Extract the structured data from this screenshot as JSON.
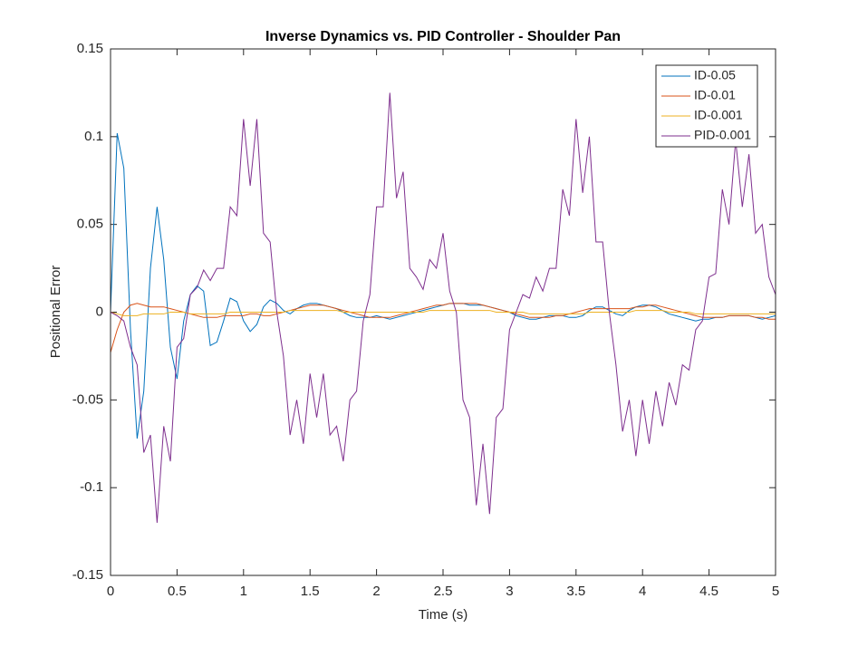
{
  "chart_data": {
    "type": "line",
    "title": "Inverse Dynamics vs. PID Controller - Shoulder Pan",
    "xlabel": "Time (s)",
    "ylabel": "Positional Error",
    "xlim": [
      0,
      5
    ],
    "ylim": [
      -0.15,
      0.15
    ],
    "xticks": [
      0,
      0.5,
      1,
      1.5,
      2,
      2.5,
      3,
      3.5,
      4,
      4.5,
      5
    ],
    "yticks": [
      -0.15,
      -0.1,
      -0.05,
      0,
      0.05,
      0.1,
      0.15
    ],
    "legend": "top-right",
    "grid": false,
    "x": [
      0,
      0.05,
      0.1,
      0.15,
      0.2,
      0.25,
      0.3,
      0.35,
      0.4,
      0.45,
      0.5,
      0.55,
      0.6,
      0.65,
      0.7,
      0.75,
      0.8,
      0.85,
      0.9,
      0.95,
      1,
      1.05,
      1.1,
      1.15,
      1.2,
      1.25,
      1.3,
      1.35,
      1.4,
      1.45,
      1.5,
      1.55,
      1.6,
      1.65,
      1.7,
      1.75,
      1.8,
      1.85,
      1.9,
      1.95,
      2,
      2.05,
      2.1,
      2.15,
      2.2,
      2.25,
      2.3,
      2.35,
      2.4,
      2.45,
      2.5,
      2.55,
      2.6,
      2.65,
      2.7,
      2.75,
      2.8,
      2.85,
      2.9,
      2.95,
      3,
      3.05,
      3.1,
      3.15,
      3.2,
      3.25,
      3.3,
      3.35,
      3.4,
      3.45,
      3.5,
      3.55,
      3.6,
      3.65,
      3.7,
      3.75,
      3.8,
      3.85,
      3.9,
      3.95,
      4,
      4.05,
      4.1,
      4.15,
      4.2,
      4.25,
      4.3,
      4.35,
      4.4,
      4.45,
      4.5,
      4.55,
      4.6,
      4.65,
      4.7,
      4.75,
      4.8,
      4.85,
      4.9,
      4.95,
      5
    ],
    "series": [
      {
        "name": "ID-0.05",
        "color": "#0072BD",
        "values": [
          0,
          0.102,
          0.082,
          -0.01,
          -0.072,
          -0.045,
          0.025,
          0.06,
          0.03,
          -0.02,
          -0.038,
          -0.005,
          0.01,
          0.015,
          0.012,
          -0.019,
          -0.017,
          -0.005,
          0.008,
          0.006,
          -0.005,
          -0.011,
          -0.007,
          0.003,
          0.007,
          0.005,
          0.001,
          -0.001,
          0.002,
          0.004,
          0.005,
          0.005,
          0.004,
          0.003,
          0.002,
          0,
          -0.002,
          -0.003,
          -0.003,
          -0.003,
          -0.002,
          -0.003,
          -0.004,
          -0.003,
          -0.002,
          -0.001,
          0,
          0.001,
          0.002,
          0.003,
          0.004,
          0.005,
          0.005,
          0.005,
          0.004,
          0.004,
          0.004,
          0.003,
          0.002,
          0.001,
          0,
          -0.002,
          -0.003,
          -0.004,
          -0.004,
          -0.003,
          -0.002,
          -0.002,
          -0.002,
          -0.003,
          -0.003,
          -0.002,
          0.001,
          0.003,
          0.003,
          0.001,
          -0.001,
          -0.002,
          0.001,
          0.003,
          0.004,
          0.004,
          0.003,
          0.001,
          -0.001,
          -0.002,
          -0.003,
          -0.004,
          -0.005,
          -0.004,
          -0.004,
          -0.003,
          -0.003,
          -0.002,
          -0.002,
          -0.002,
          -0.002,
          -0.003,
          -0.004,
          -0.003,
          -0.002
        ]
      },
      {
        "name": "ID-0.01",
        "color": "#D95319",
        "values": [
          -0.023,
          -0.01,
          0,
          0.004,
          0.005,
          0.004,
          0.003,
          0.003,
          0.003,
          0.002,
          0.001,
          0,
          -0.001,
          -0.002,
          -0.003,
          -0.003,
          -0.003,
          -0.002,
          -0.002,
          -0.002,
          -0.002,
          -0.001,
          -0.001,
          -0.002,
          -0.002,
          -0.001,
          0,
          0.001,
          0.002,
          0.003,
          0.004,
          0.004,
          0.004,
          0.003,
          0.002,
          0.001,
          0,
          -0.001,
          -0.002,
          -0.003,
          -0.003,
          -0.003,
          -0.003,
          -0.002,
          -0.001,
          0,
          0.001,
          0.002,
          0.003,
          0.004,
          0.004,
          0.005,
          0.005,
          0.005,
          0.005,
          0.005,
          0.004,
          0.003,
          0.002,
          0.001,
          0,
          -0.001,
          -0.002,
          -0.003,
          -0.003,
          -0.003,
          -0.003,
          -0.002,
          -0.002,
          -0.001,
          0,
          0.001,
          0.002,
          0.002,
          0.002,
          0.002,
          0.002,
          0.002,
          0.002,
          0.003,
          0.003,
          0.004,
          0.004,
          0.003,
          0.002,
          0.001,
          0,
          -0.001,
          -0.002,
          -0.003,
          -0.003,
          -0.003,
          -0.003,
          -0.002,
          -0.002,
          -0.002,
          -0.002,
          -0.003,
          -0.003,
          -0.004,
          -0.004
        ]
      },
      {
        "name": "ID-0.001",
        "color": "#EDB120",
        "values": [
          0,
          -0.001,
          -0.002,
          -0.002,
          -0.002,
          -0.001,
          -0.001,
          -0.001,
          -0.001,
          0,
          0,
          0,
          -0.001,
          -0.001,
          -0.001,
          -0.001,
          -0.001,
          -0.001,
          0,
          0,
          0,
          0,
          0,
          0,
          0,
          0,
          0,
          0.001,
          0.001,
          0.001,
          0.001,
          0.001,
          0.001,
          0.001,
          0.001,
          0,
          0,
          0,
          0,
          0,
          0,
          0,
          0,
          0,
          0,
          0,
          0,
          0,
          0.001,
          0.001,
          0.001,
          0.001,
          0.001,
          0.001,
          0.001,
          0.001,
          0.001,
          0.001,
          0,
          0,
          0,
          0,
          0,
          -0.001,
          -0.001,
          -0.001,
          -0.001,
          -0.001,
          -0.001,
          -0.001,
          -0.001,
          -0.001,
          0,
          0,
          0,
          0,
          0,
          0,
          0,
          0.001,
          0.001,
          0.001,
          0.001,
          0.001,
          0,
          0,
          0,
          0,
          -0.001,
          -0.001,
          -0.001,
          -0.001,
          -0.001,
          -0.001,
          -0.001,
          -0.001,
          -0.001,
          -0.001,
          -0.001,
          -0.001,
          -0.001
        ]
      },
      {
        "name": "PID-0.001",
        "color": "#7E2F8E",
        "values": [
          0,
          -0.002,
          -0.005,
          -0.02,
          -0.03,
          -0.08,
          -0.07,
          -0.12,
          -0.065,
          -0.085,
          -0.02,
          -0.015,
          0.01,
          0.014,
          0.024,
          0.018,
          0.025,
          0.025,
          0.06,
          0.055,
          0.11,
          0.072,
          0.11,
          0.045,
          0.04,
          0,
          -0.025,
          -0.07,
          -0.05,
          -0.075,
          -0.035,
          -0.06,
          -0.035,
          -0.07,
          -0.065,
          -0.085,
          -0.05,
          -0.045,
          -0.005,
          0.01,
          0.06,
          0.06,
          0.125,
          0.065,
          0.08,
          0.025,
          0.02,
          0.013,
          0.03,
          0.025,
          0.045,
          0.012,
          0,
          -0.05,
          -0.06,
          -0.11,
          -0.075,
          -0.115,
          -0.06,
          -0.055,
          -0.01,
          0,
          0.01,
          0.008,
          0.02,
          0.012,
          0.025,
          0.025,
          0.07,
          0.055,
          0.11,
          0.068,
          0.1,
          0.04,
          0.04,
          0,
          -0.03,
          -0.068,
          -0.05,
          -0.082,
          -0.05,
          -0.075,
          -0.045,
          -0.065,
          -0.04,
          -0.053,
          -0.03,
          -0.033,
          -0.01,
          -0.005,
          0.02,
          0.022,
          0.07,
          0.05,
          0.098,
          0.06,
          0.09,
          0.045,
          0.05,
          0.02,
          0.01
        ]
      }
    ]
  }
}
